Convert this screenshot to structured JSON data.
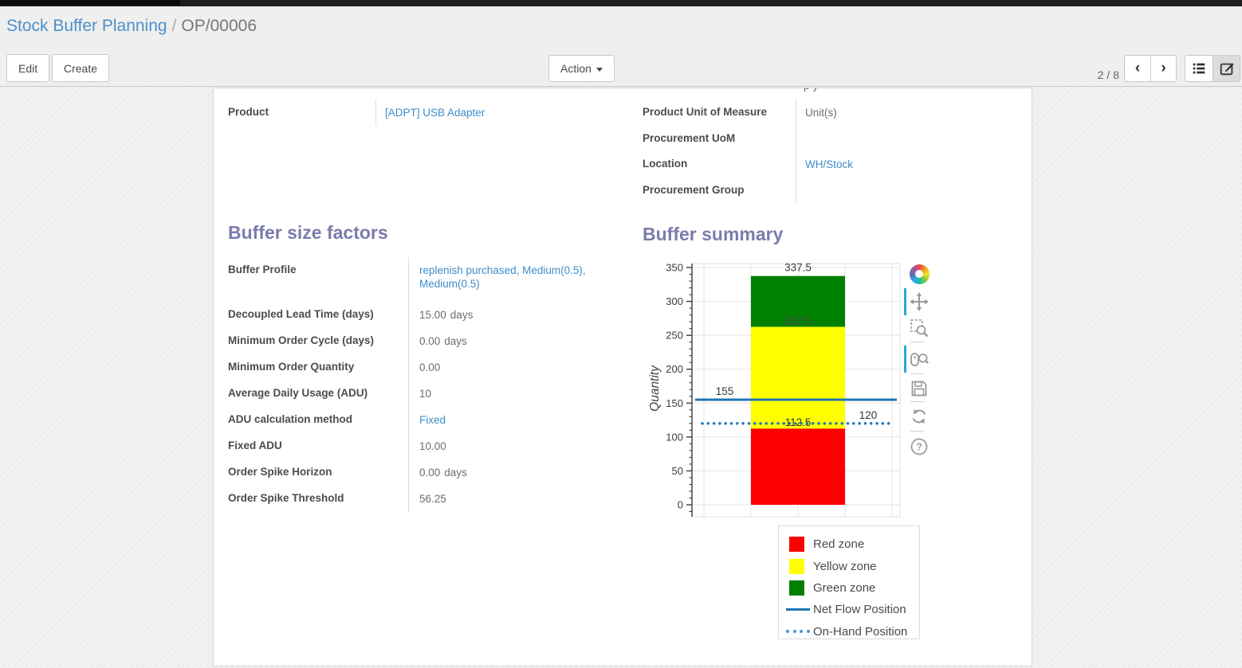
{
  "colors": {
    "heading": "#7c7bad",
    "link": "#3f8cc9",
    "breadcrumb_link": "#4c8fce",
    "toolbar_active": "#26a9e0",
    "topbar": "#1f1f1f"
  },
  "control_panel": {
    "breadcrumb": {
      "parent": "Stock Buffer Planning",
      "separator": "/",
      "current": "OP/00006"
    },
    "buttons": {
      "edit": "Edit",
      "create": "Create",
      "action": "Action"
    },
    "pager": {
      "text": "2 / 8",
      "prev": "‹",
      "next": "›"
    },
    "view_switcher": [
      {
        "name": "list-view-button",
        "icon": "list-icon",
        "active": false
      },
      {
        "name": "form-view-button",
        "icon": "form-edit-icon",
        "active": true
      }
    ]
  },
  "sheet": {
    "clipped_fragment": "p y",
    "product_group": [
      {
        "label": "Product",
        "value": "[ADPT] USB Adapter",
        "link": true
      }
    ],
    "info_group": [
      {
        "label": "Product Unit of Measure",
        "value": "Unit(s)",
        "link": false
      },
      {
        "label": "Procurement UoM",
        "value": "",
        "link": false
      },
      {
        "label": "Location",
        "value": "WH/Stock",
        "link": true
      },
      {
        "label": "Procurement Group",
        "value": "",
        "link": false
      }
    ],
    "buffer_size_factors": {
      "title": "Buffer size factors",
      "fields": [
        {
          "label": "Buffer Profile",
          "value": "replenish purchased, Medium(0.5), Medium(0.5)",
          "link": true,
          "tall": true
        },
        {
          "label": "Decoupled Lead Time (days)",
          "value": "15.00",
          "unit": "days"
        },
        {
          "label": "Minimum Order Cycle (days)",
          "value": "0.00",
          "unit": "days"
        },
        {
          "label": "Minimum Order Quantity",
          "value": "0.00"
        },
        {
          "label": "Average Daily Usage (ADU)",
          "value": "10"
        },
        {
          "label": "ADU calculation method",
          "value": "Fixed",
          "link": true
        },
        {
          "label": "Fixed ADU",
          "value": "10.00"
        },
        {
          "label": "Order Spike Horizon",
          "value": "0.00",
          "unit": "days"
        },
        {
          "label": "Order Spike Threshold",
          "value": "56.25"
        }
      ]
    },
    "buffer_summary": {
      "title": "Buffer summary"
    }
  },
  "chart_data": {
    "type": "bar",
    "title": "Buffer summary",
    "xlabel": "",
    "ylabel": "Quantity",
    "ylim": [
      0,
      350
    ],
    "y_major_ticks": [
      0,
      50,
      100,
      150,
      200,
      250,
      300,
      350
    ],
    "grid": true,
    "zones": [
      {
        "name": "Red zone",
        "from": 0,
        "to": 112.5,
        "color": "#ff0000"
      },
      {
        "name": "Yellow zone",
        "from": 112.5,
        "to": 262.5,
        "color": "#ffff00"
      },
      {
        "name": "Green zone",
        "from": 262.5,
        "to": 337.5,
        "color": "#008000"
      }
    ],
    "zone_boundary_labels": [
      {
        "text": "337.5",
        "value": 337.5
      },
      {
        "text": "262.5",
        "value": 262.5
      },
      {
        "text": "112.5",
        "value": 112.5
      }
    ],
    "lines": [
      {
        "name": "Net Flow Position",
        "value": 155,
        "label": "155",
        "style": "solid",
        "color": "#1f77b4",
        "label_side": "left"
      },
      {
        "name": "On-Hand Position",
        "value": 120,
        "label": "120",
        "style": "dotted",
        "color": "#1f77b4",
        "label_side": "right"
      }
    ],
    "legend_position": "below-right",
    "legend": {
      "entries": [
        {
          "label": "Red zone",
          "marker": "square",
          "color": "#ff0000"
        },
        {
          "label": "Yellow zone",
          "marker": "square",
          "color": "#ffff00"
        },
        {
          "label": "Green zone",
          "marker": "square",
          "color": "#008000"
        },
        {
          "label": "Net Flow Position",
          "marker": "line-solid",
          "color": "#1f77b4"
        },
        {
          "label": "On-Hand Position",
          "marker": "line-dotted",
          "color": "#4f94cd"
        }
      ]
    }
  },
  "chart_toolbar": {
    "tools": [
      {
        "name": "bokeh-logo",
        "active": false
      },
      {
        "name": "pan",
        "active": true
      },
      {
        "name": "box-zoom",
        "active": false
      },
      {
        "name": "wheel-zoom",
        "active": true
      },
      {
        "name": "save",
        "active": false
      },
      {
        "name": "reset",
        "active": false
      },
      {
        "name": "help",
        "active": false
      }
    ]
  }
}
